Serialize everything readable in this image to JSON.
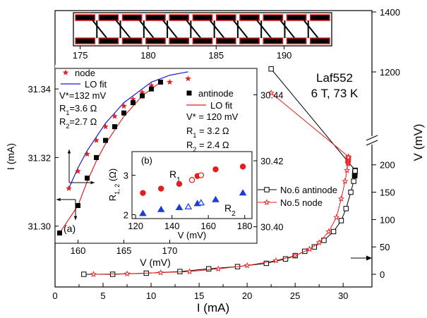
{
  "chart_data": [
    {
      "id": "main",
      "type": "line",
      "xlabel": "I (mA)",
      "ylabel": "V (mV)",
      "xlim": [
        0,
        33
      ],
      "ylim": [
        -20,
        290
      ],
      "y_break_top": {
        "range": [
          1000,
          1400
        ],
        "ticks": [
          1200,
          1400
        ]
      },
      "x_ticks": [
        0,
        5,
        10,
        15,
        20,
        25,
        30
      ],
      "y_ticks": [
        0,
        50,
        100,
        150,
        200
      ],
      "annotation": {
        "line1": "Laf552",
        "line2": "6 T, 73 K"
      },
      "legend": {
        "placement": "middle-right"
      },
      "series": [
        {
          "name": "No.6 antinode",
          "color": "#000000",
          "marker": "open-square",
          "points": [
            [
              3,
              0
            ],
            [
              6,
              0
            ],
            [
              9.5,
              2
            ],
            [
              13,
              5
            ],
            [
              16,
              10
            ],
            [
              19,
              14
            ],
            [
              22,
              20
            ],
            [
              24,
              28
            ],
            [
              25,
              34
            ],
            [
              26,
              42
            ],
            [
              27,
              50
            ],
            [
              28,
              62
            ],
            [
              29,
              78
            ],
            [
              29.8,
              98
            ],
            [
              30.3,
              120
            ],
            [
              30.8,
              150
            ],
            [
              31.1,
              170
            ],
            [
              31.2,
              180
            ],
            [
              31.25,
              190
            ],
            [
              22.5,
              1210
            ]
          ]
        },
        {
          "name": "No.5 node",
          "color": "#e41e1e",
          "marker": "open-star",
          "points": [
            [
              4,
              0
            ],
            [
              7.5,
              1
            ],
            [
              11,
              3
            ],
            [
              14,
              5
            ],
            [
              17,
              10
            ],
            [
              20,
              16
            ],
            [
              23,
              25
            ],
            [
              25,
              34
            ],
            [
              26.5,
              46
            ],
            [
              27.5,
              58
            ],
            [
              28.5,
              78
            ],
            [
              29.3,
              104
            ],
            [
              29.8,
              138
            ],
            [
              30.2,
              170
            ],
            [
              30.4,
              190
            ],
            [
              30.5,
              202
            ],
            [
              30.55,
              215
            ],
            [
              22.5,
              1130
            ]
          ]
        }
      ]
    },
    {
      "id": "inset_large",
      "type": "scatter",
      "xlabel": "V (mV)",
      "ylabel": "I (mA)",
      "xlim": [
        157.5,
        179.5
      ],
      "ylim": [
        31.295,
        31.346
      ],
      "x_ticks": [
        160,
        165,
        170
      ],
      "y_ticks": [
        31.3,
        31.32,
        31.34
      ],
      "right_axis_ticks": [
        30.4,
        30.42,
        30.44
      ],
      "right_axis_tick_labels": [
        "30.40",
        "30.42",
        "30.44"
      ],
      "side_label": "(a)",
      "series": [
        {
          "name": "node",
          "color": "#e41e1e",
          "marker": "star",
          "points": [
            [
              159,
              31.311
            ],
            [
              160,
              31.316
            ],
            [
              161,
              31.321
            ],
            [
              162,
              31.325
            ],
            [
              163,
              31.329
            ],
            [
              164,
              31.332
            ],
            [
              165,
              31.335
            ],
            [
              166,
              31.337
            ],
            [
              167,
              31.339
            ],
            [
              168,
              31.341
            ],
            [
              170,
              31.342
            ],
            [
              172,
              31.343
            ]
          ]
        },
        {
          "name": "antinode",
          "color": "#000000",
          "marker": "square",
          "points": [
            [
              158,
              31.298
            ],
            [
              160,
              31.306
            ],
            [
              161,
              31.314
            ],
            [
              162,
              31.32
            ],
            [
              163,
              31.325
            ],
            [
              164,
              31.329
            ],
            [
              165,
              31.333
            ],
            [
              166,
              31.336
            ],
            [
              167,
              31.338
            ],
            [
              168,
              31.34
            ],
            [
              169,
              31.342
            ]
          ]
        },
        {
          "name": "LO fit",
          "color": "#1c1cd6",
          "points": [
            [
              159,
              31.311
            ],
            [
              160,
              31.317
            ],
            [
              161,
              31.322
            ],
            [
              162,
              31.326
            ],
            [
              163,
              31.33
            ],
            [
              164,
              31.333
            ],
            [
              165,
              31.336
            ],
            [
              166,
              31.338
            ],
            [
              167,
              31.34
            ],
            [
              168,
              31.342
            ],
            [
              170,
              31.344
            ],
            [
              172,
              31.345
            ]
          ]
        },
        {
          "name": "LO fit",
          "color": "#e41e1e",
          "points": [
            [
              158,
              31.298
            ],
            [
              160,
              31.306
            ],
            [
              161,
              31.313
            ],
            [
              162,
              31.319
            ],
            [
              163,
              31.324
            ],
            [
              164,
              31.328
            ],
            [
              165,
              31.332
            ],
            [
              166,
              31.335
            ],
            [
              167,
              31.338
            ],
            [
              168,
              31.34
            ],
            [
              169,
              31.342
            ]
          ]
        }
      ],
      "fit_node": {
        "vstar": "V*=132 mV",
        "r1": "R",
        "r1_sub": "1",
        "r1_val": "=3.6 Ω",
        "r2": "R",
        "r2_sub": "2",
        "r2_val": "=2.7 Ω"
      },
      "fit_antinode": {
        "vstar": "V* = 120 mV",
        "r1": "R",
        "r1_sub": "1",
        "r1_val": " = 3.2 Ω",
        "r2": "R",
        "r2_sub": "2",
        "r2_val": " = 2.4 Ω"
      }
    },
    {
      "id": "inset_small",
      "type": "scatter",
      "xlabel": "V (mV)",
      "ylabel": "R",
      "ylabel_sub": "1, 2",
      "ylabel_unit": " (Ω)",
      "xlim": [
        118,
        184
      ],
      "ylim": [
        1.9,
        3.6
      ],
      "x_ticks": [
        120,
        140,
        160,
        180
      ],
      "y_ticks": [
        2,
        3
      ],
      "panel_label": "(b)",
      "series": [
        {
          "name": "R",
          "name_sub": "1",
          "color": "#e41e1e",
          "marker": "circle",
          "points": [
            [
              124,
              2.55
            ],
            [
              134,
              2.66
            ],
            [
              144,
              2.78
            ],
            [
              154,
              2.98
            ],
            [
              164,
              3.15
            ],
            [
              179,
              3.22
            ]
          ],
          "open_points": [
            [
              151,
              2.88
            ],
            [
              156,
              3.0
            ]
          ]
        },
        {
          "name": "R",
          "name_sub": "2",
          "color": "#1c3cd6",
          "marker": "triangle",
          "points": [
            [
              124,
              2.03
            ],
            [
              134,
              2.13
            ],
            [
              144,
              2.18
            ],
            [
              154,
              2.28
            ],
            [
              164,
              2.38
            ],
            [
              179,
              2.55
            ]
          ],
          "open_points": [
            [
              149,
              2.2
            ],
            [
              156,
              2.3
            ]
          ]
        }
      ]
    },
    {
      "id": "top_strip",
      "type": "diagram",
      "x_ticks": [
        175,
        180,
        185,
        190
      ],
      "xlim": [
        174.5,
        193.5
      ]
    }
  ]
}
